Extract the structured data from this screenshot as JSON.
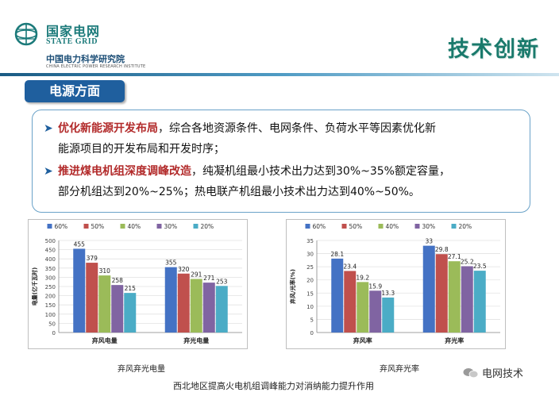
{
  "header": {
    "logo_cn": "国家电网",
    "logo_en": "STATE GRID",
    "org_cn": "中国电力科学研究院",
    "org_en": "CHINA ELECTRIC POWER RESEARCH INSTITUTE",
    "title": "技术创新"
  },
  "section": {
    "label": "电源方面"
  },
  "bullets": [
    {
      "highlight": "优化新能源开发布局",
      "text_line1": "，综合各地资源条件、电网条件、负荷水平等因素优化新",
      "text_line2": "能源项目的开发布局和开发时序；"
    },
    {
      "highlight": "推进煤电机组深度调峰改造",
      "text_line1": "，纯凝机组最小技术出力达到30%~35%额定容量，",
      "text_line2": "部分机组达到20%~25%；热电联产机组最小技术出力达到40%~50%。"
    }
  ],
  "colors": {
    "accent": "#1f5f9e",
    "highlight": "#b22a2a",
    "s60": "#4472c4",
    "s50": "#c0504d",
    "s40": "#9bbb59",
    "s30": "#8064a2",
    "s20": "#4bacc6"
  },
  "chart_data": [
    {
      "type": "bar",
      "title": "弃风弃光电量",
      "ylabel": "电量(亿千瓦时)",
      "xlabel": "",
      "ylim": [
        0,
        500
      ],
      "yticks": [
        0,
        50,
        100,
        150,
        200,
        250,
        300,
        350,
        400,
        450,
        500
      ],
      "categories": [
        "弃风电量",
        "弃光电量"
      ],
      "series": [
        {
          "name": "60%",
          "values": [
            455,
            355
          ]
        },
        {
          "name": "50%",
          "values": [
            379,
            320
          ]
        },
        {
          "name": "40%",
          "values": [
            310,
            291
          ]
        },
        {
          "name": "30%",
          "values": [
            258,
            271
          ]
        },
        {
          "name": "20%",
          "values": [
            215,
            253
          ]
        }
      ],
      "grid": true,
      "legend": "top"
    },
    {
      "type": "bar",
      "title": "弃风弃光率",
      "ylabel": "弃风/光率(%)",
      "xlabel": "",
      "ylim": [
        0,
        35
      ],
      "yticks": [
        0,
        5,
        10,
        15,
        20,
        25,
        30,
        35
      ],
      "categories": [
        "弃风率",
        "弃光率"
      ],
      "series": [
        {
          "name": "60%",
          "values": [
            28.1,
            33.0
          ]
        },
        {
          "name": "50%",
          "values": [
            23.4,
            29.8
          ]
        },
        {
          "name": "40%",
          "values": [
            19.2,
            27.1
          ]
        },
        {
          "name": "30%",
          "values": [
            15.9,
            25.2
          ]
        },
        {
          "name": "20%",
          "values": [
            13.3,
            23.5
          ]
        }
      ],
      "grid": true,
      "legend": "top"
    }
  ],
  "footer": {
    "caption": "西北地区提高火电机组调峰能力对消纳能力提升作用",
    "watermark": "电网技术"
  }
}
